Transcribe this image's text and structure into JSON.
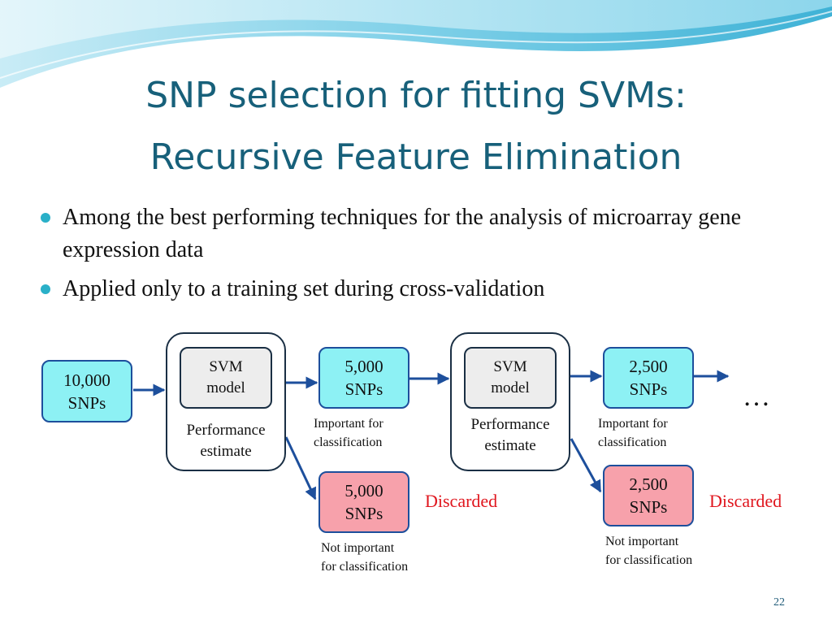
{
  "slide": {
    "title_line1": "SNP selection for fitting SVMs:",
    "title_line2": "Recursive Feature Elimination",
    "bullets": [
      "Among the best performing techniques for the analysis of microarray gene expression data",
      "Applied only to a training set during cross-validation"
    ],
    "page_number": "22"
  },
  "diagram": {
    "input": {
      "line1": "10,000",
      "line2": "SNPs"
    },
    "stages": [
      {
        "model_line1": "SVM",
        "model_line2": "model",
        "perf_line1": "Performance",
        "perf_line2": "estimate",
        "kept": {
          "line1": "5,000",
          "line2": "SNPs"
        },
        "kept_note_line1": "Important for",
        "kept_note_line2": "classification",
        "dropped": {
          "line1": "5,000",
          "line2": "SNPs"
        },
        "dropped_note_line1": "Not important",
        "dropped_note_line2": "for classification",
        "discarded_label": "Discarded"
      },
      {
        "model_line1": "SVM",
        "model_line2": "model",
        "perf_line1": "Performance",
        "perf_line2": "estimate",
        "kept": {
          "line1": "2,500",
          "line2": "SNPs"
        },
        "kept_note_line1": "Important for",
        "kept_note_line2": "classification",
        "dropped": {
          "line1": "2,500",
          "line2": "SNPs"
        },
        "dropped_note_line1": "Not important",
        "dropped_note_line2": "for classification",
        "discarded_label": "Discarded"
      }
    ],
    "continuation": "…"
  },
  "colors": {
    "title": "#17607a",
    "bullet": "#2ab0c8",
    "snp_box_fill": "#8df1f4",
    "discarded_box_fill": "#f7a1ab",
    "model_box_fill": "#ededed",
    "discarded_text": "#e0161e",
    "arrow": "#1d4f9c"
  }
}
